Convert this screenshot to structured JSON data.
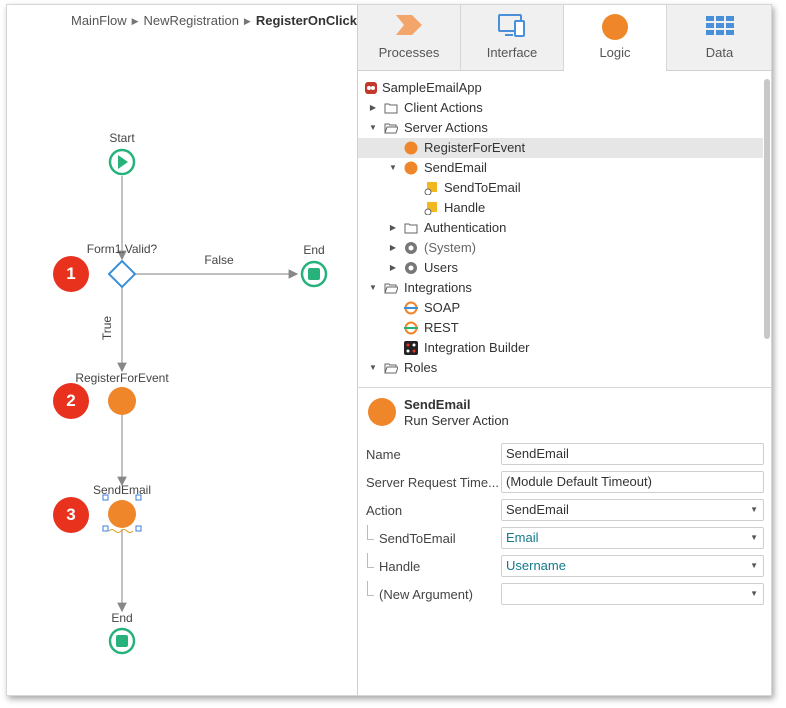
{
  "breadcrumb": {
    "items": [
      "MainFlow",
      "NewRegistration"
    ],
    "current": "RegisterOnClick"
  },
  "flow": {
    "start_label": "Start",
    "if_label": "Form1.Valid?",
    "false_label": "False",
    "true_label": "True",
    "end_label_1": "End",
    "action1_label": "RegisterForEvent",
    "action2_label": "SendEmail",
    "end_label_2": "End",
    "badges": [
      "1",
      "2",
      "3"
    ]
  },
  "tabs": [
    {
      "label": "Processes",
      "icon": "processes-icon"
    },
    {
      "label": "Interface",
      "icon": "interface-icon"
    },
    {
      "label": "Logic",
      "icon": "logic-icon",
      "active": true
    },
    {
      "label": "Data",
      "icon": "data-icon"
    }
  ],
  "tree": [
    {
      "label": "SampleEmailApp",
      "icon": "app-icon",
      "level": 0,
      "arrow": ""
    },
    {
      "label": "Client Actions",
      "icon": "folder-icon",
      "level": 1,
      "arrow": "right"
    },
    {
      "label": "Server Actions",
      "icon": "folder-open-icon",
      "level": 1,
      "arrow": "down"
    },
    {
      "label": "RegisterForEvent",
      "icon": "action-icon",
      "level": 2,
      "arrow": "",
      "selected": true
    },
    {
      "label": "SendEmail",
      "icon": "action-icon",
      "level": 2,
      "arrow": "down"
    },
    {
      "label": "SendToEmail",
      "icon": "input-param-icon",
      "level": 3,
      "arrow": ""
    },
    {
      "label": "Handle",
      "icon": "input-param-icon",
      "level": 3,
      "arrow": ""
    },
    {
      "label": "Authentication",
      "icon": "folder-icon",
      "level": 2,
      "arrow": "right"
    },
    {
      "label": "(System)",
      "icon": "module-icon",
      "level": 2,
      "arrow": "right"
    },
    {
      "label": "Users",
      "icon": "module-icon",
      "level": 2,
      "arrow": "right"
    },
    {
      "label": "Integrations",
      "icon": "folder-open-icon",
      "level": 1,
      "arrow": "down"
    },
    {
      "label": "SOAP",
      "icon": "soap-icon",
      "level": 2,
      "arrow": ""
    },
    {
      "label": "REST",
      "icon": "rest-icon",
      "level": 2,
      "arrow": ""
    },
    {
      "label": "Integration Builder",
      "icon": "integration-builder-icon",
      "level": 2,
      "arrow": ""
    },
    {
      "label": "Roles",
      "icon": "folder-open-icon",
      "level": 1,
      "arrow": "down"
    }
  ],
  "selected": {
    "name": "SendEmail",
    "type": "Run Server Action"
  },
  "properties": [
    {
      "label": "Name",
      "value": "SendEmail",
      "dropdown": false,
      "indent": false
    },
    {
      "label": "Server Request Time...",
      "value": "(Module Default Timeout)",
      "dropdown": false,
      "indent": false
    },
    {
      "label": "Action",
      "value": "SendEmail",
      "dropdown": true,
      "indent": false
    },
    {
      "label": "SendToEmail",
      "value": "Email",
      "dropdown": true,
      "indent": true,
      "teal": true
    },
    {
      "label": "Handle",
      "value": "Username",
      "dropdown": true,
      "indent": true,
      "teal": true
    },
    {
      "label": "(New Argument)",
      "value": "",
      "dropdown": true,
      "indent": true
    }
  ],
  "colors": {
    "accent_orange": "#f0862a",
    "flow_green": "#27b27c",
    "if_blue": "#3b8fd8",
    "badge_red": "#e8321e"
  }
}
